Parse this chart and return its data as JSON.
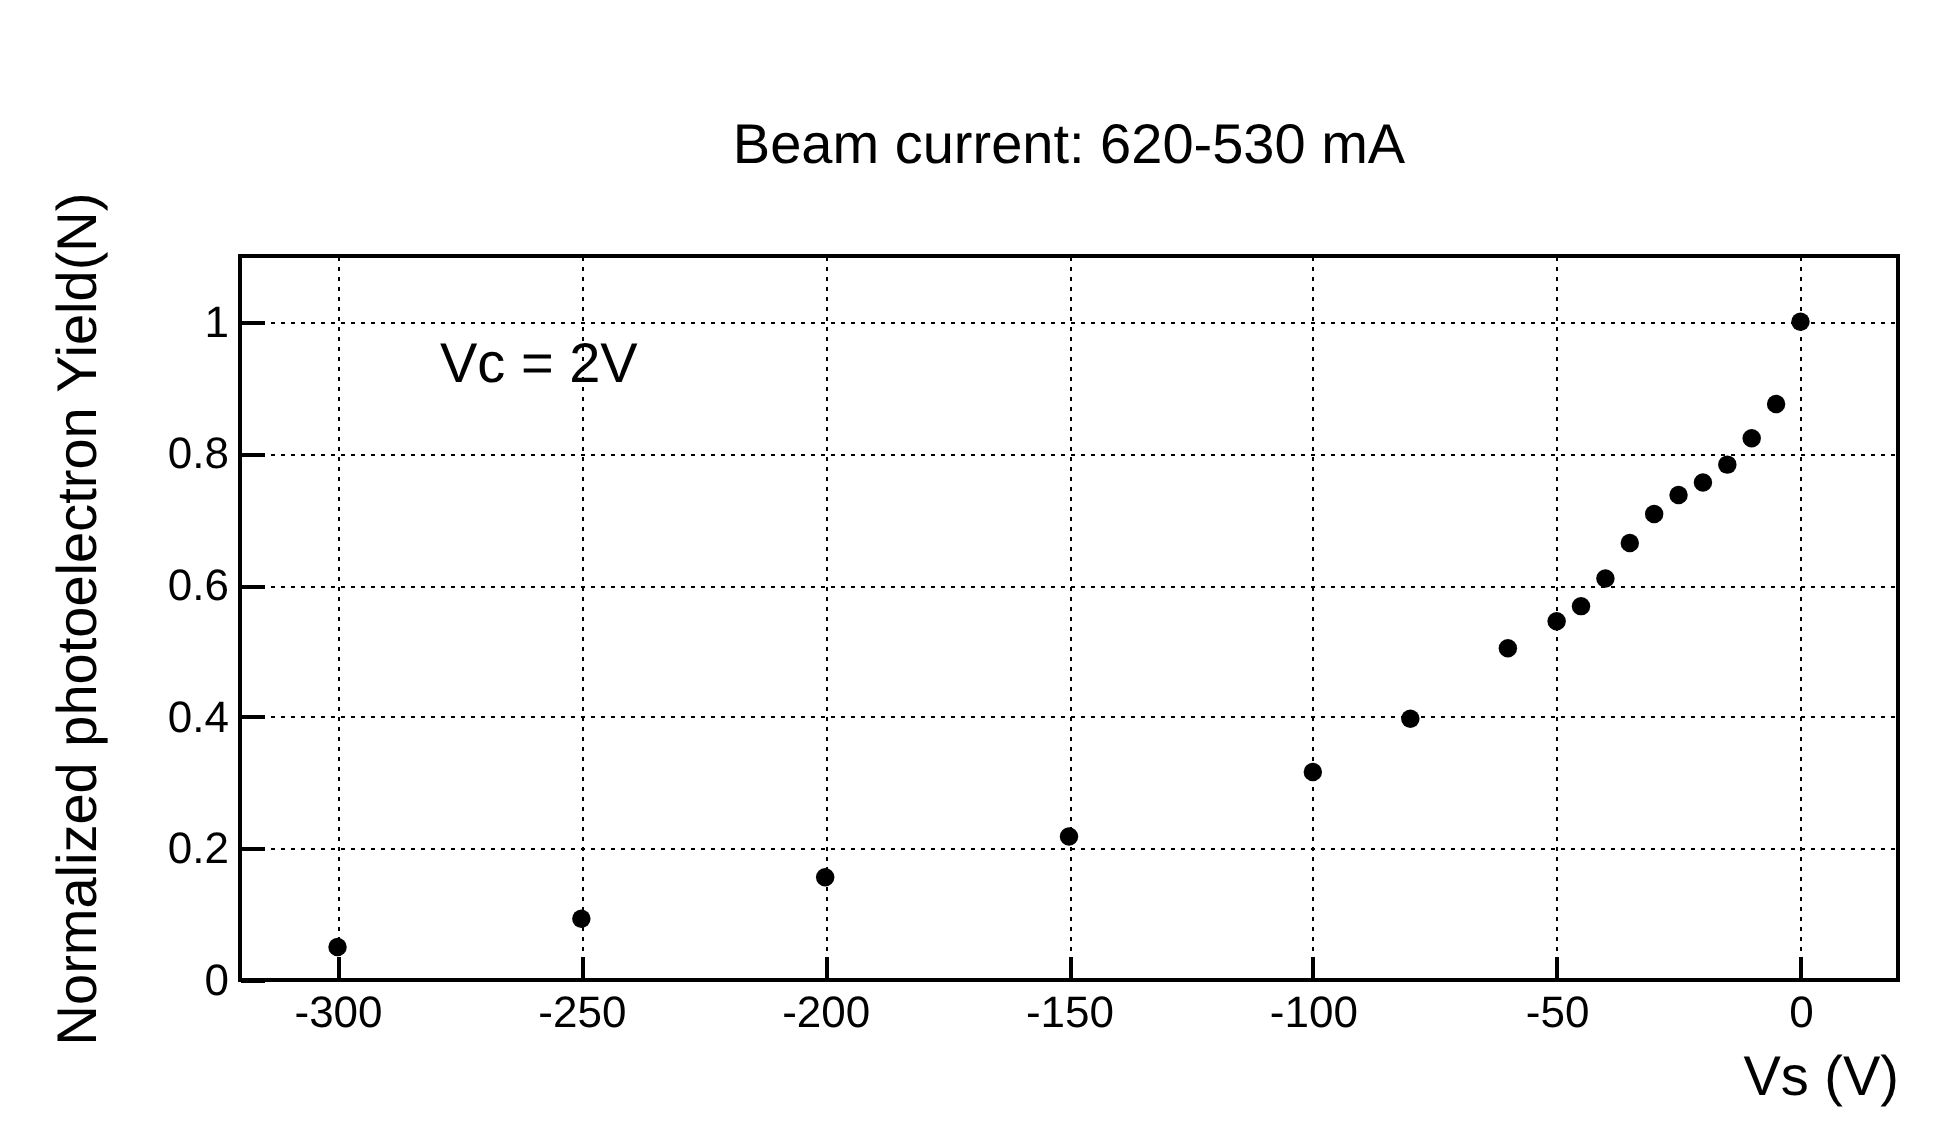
{
  "chart_data": {
    "type": "scatter",
    "title": "Beam current: 620-530 mA",
    "xlabel": "Vs (V)",
    "ylabel": "Normalized photoelectron Yield(N)",
    "annotations": [
      "Vc = 2V"
    ],
    "x": [
      -300,
      -250,
      -200,
      -150,
      -100,
      -80,
      -60,
      -50,
      -45,
      -40,
      -35,
      -30,
      -25,
      -20,
      -15,
      -10,
      -5,
      0
    ],
    "series": [
      {
        "color": "#000000",
        "values": [
          0.05,
          0.093,
          0.156,
          0.218,
          0.316,
          0.397,
          0.504,
          0.545,
          0.568,
          0.61,
          0.664,
          0.708,
          0.737,
          0.756,
          0.783,
          0.823,
          0.875,
          1.0
        ]
      }
    ],
    "xlim": [
      -320,
      20
    ],
    "ylim": [
      0,
      1.1
    ],
    "xticks": [
      -300,
      -250,
      -200,
      -150,
      -100,
      -50,
      0
    ],
    "yticks": [
      0,
      0.2,
      0.4,
      0.6,
      0.8,
      1
    ],
    "grid": true,
    "marker": "circle"
  }
}
